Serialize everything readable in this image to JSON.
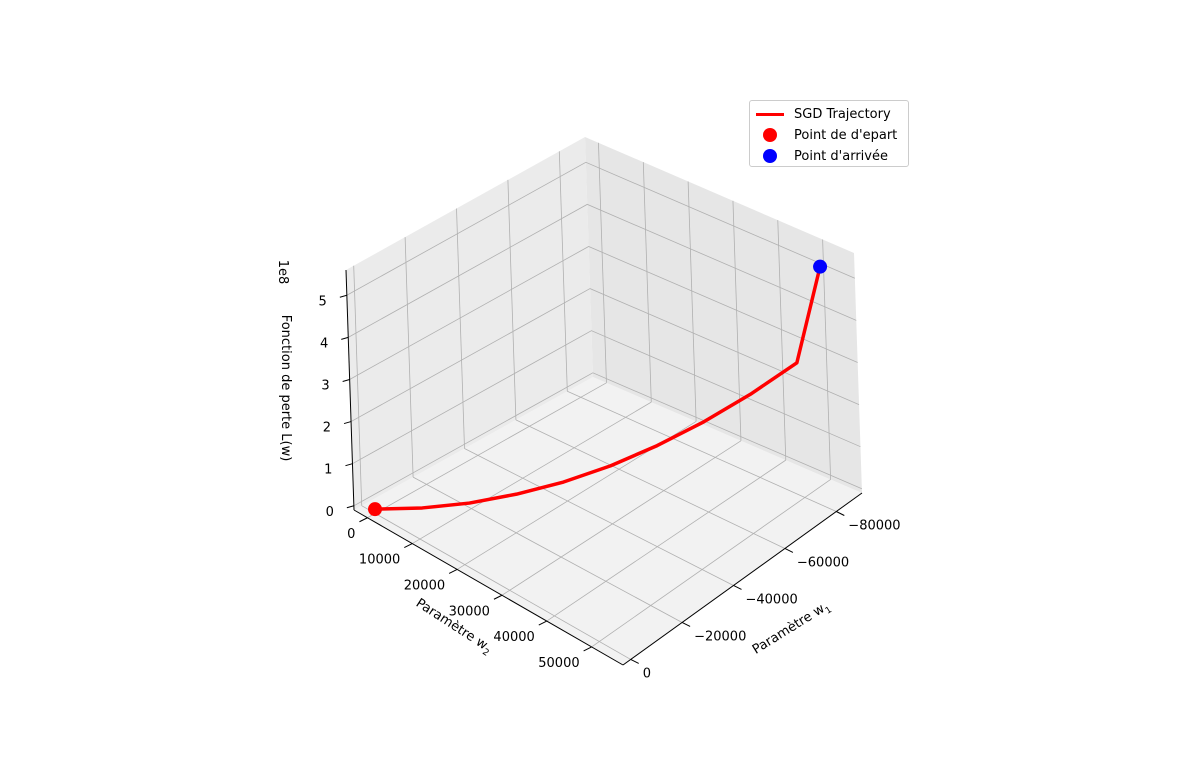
{
  "chart_data": {
    "type": "line3d",
    "xlabel": "Paramètre w",
    "xlabel_sub": "1",
    "ylabel": "Paramètre w",
    "ylabel_sub": "2",
    "zlabel": "Fonction de perte L(w)",
    "z_offset_label": "1e8",
    "x_ticks": [
      "−80000",
      "−60000",
      "−40000",
      "−20000",
      "0"
    ],
    "y_ticks": [
      "0",
      "10000",
      "20000",
      "30000",
      "40000",
      "50000"
    ],
    "z_ticks": [
      "0",
      "1",
      "2",
      "3",
      "4",
      "5"
    ],
    "xlim": [
      -90000,
      3000
    ],
    "ylim": [
      -3000,
      57000
    ],
    "zlim": [
      -0.1,
      5.6
    ],
    "series": [
      {
        "name": "SGD Trajectory",
        "color": "#ff0000",
        "x": [
          0,
          -9000,
          -18000,
          -27000,
          -36000,
          -45000,
          -54000,
          -63000,
          -72000,
          -81000,
          -86000
        ],
        "y": [
          0,
          5400,
          10800,
          16200,
          21600,
          27000,
          32400,
          37800,
          43200,
          48600,
          51600
        ],
        "z": [
          0,
          0.04,
          0.15,
          0.34,
          0.59,
          0.92,
          1.33,
          1.81,
          2.36,
          2.99,
          5.2
        ]
      }
    ],
    "start_point": {
      "name": "Point de d'epart",
      "color": "#ff0000",
      "x": 0,
      "y": 0,
      "z": 0
    },
    "end_point": {
      "name": "Point d'arrivée",
      "color": "#0000ff",
      "x": -86000,
      "y": 51600,
      "z": 5.2
    },
    "legend": "top-right",
    "grid": true
  }
}
